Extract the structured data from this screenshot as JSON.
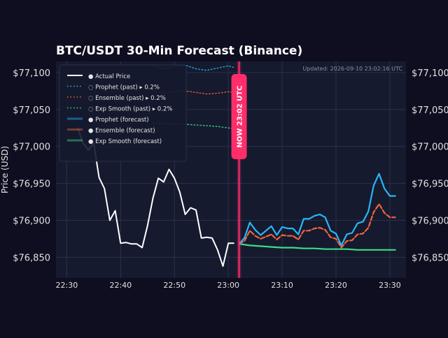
{
  "colors": {
    "page_bg": "#0e0e20",
    "plot_bg": "#151a2e",
    "actual": "#ffffff",
    "prophet": "#29b6f6",
    "ensemble": "#f0643c",
    "exp_smooth": "#3ddc84",
    "now_line": "#ff2d6a",
    "tick_text": "#e0e0e0",
    "updated_text": "#8a8fa3"
  },
  "chart_data": {
    "type": "line",
    "title": "BTC/USDT 30-Min Forecast (Binance)",
    "ylabel": "Price (USD)",
    "xlabel": "",
    "updated": "Updated: 2026-09-10 23:02:16 UTC",
    "now_label": "NOW  23:02 UTC",
    "now_time": "23:02",
    "ylim": [
      76822,
      77115
    ],
    "xlim": [
      "22:28",
      "23:33"
    ],
    "y_ticks": [
      76850,
      76900,
      76950,
      77000,
      77050,
      77100
    ],
    "y_tick_labels": [
      "$76,850",
      "$76,900",
      "$76,950",
      "$77,000",
      "$77,050",
      "$77,100"
    ],
    "x_ticks": [
      "22:30",
      "22:40",
      "22:50",
      "23:00",
      "23:10",
      "23:20",
      "23:30"
    ],
    "grid": true,
    "legend_position": "top-left",
    "legend": [
      {
        "label": "● Actual Price",
        "style": "solid",
        "color_key": "actual"
      },
      {
        "label": "◌ Prophet (past)  ▸ 0.2%",
        "style": "dotted",
        "color_key": "prophet"
      },
      {
        "label": "◌ Ensemble (past)  ▸ 0.2%",
        "style": "dotted",
        "color_key": "ensemble"
      },
      {
        "label": "◌ Exp Smooth (past)  ▸ 0.2%",
        "style": "dotted",
        "color_key": "exp_smooth"
      },
      {
        "label": "● Prophet (forecast)",
        "style": "solid-faded",
        "color_key": "prophet"
      },
      {
        "label": "● Ensemble (forecast)",
        "style": "solid-faded",
        "color_key": "ensemble"
      },
      {
        "label": "● Exp Smooth (forecast)",
        "style": "solid-faded",
        "color_key": "exp_smooth"
      }
    ],
    "series": [
      {
        "name": "Actual Price",
        "color_key": "actual",
        "style": "solid",
        "x": [
          "22:32",
          "22:33",
          "22:34",
          "22:35",
          "22:36",
          "22:37",
          "22:38",
          "22:39",
          "22:40",
          "22:41",
          "22:42",
          "22:43",
          "22:44",
          "22:45",
          "22:46",
          "22:47",
          "22:48",
          "22:49",
          "22:50",
          "22:51",
          "22:52",
          "22:53",
          "22:54",
          "22:55",
          "22:56",
          "22:57",
          "22:58",
          "22:59",
          "23:00",
          "23:01"
        ],
        "y": [
          77025,
          77005,
          76995,
          77005,
          76958,
          76943,
          76900,
          76913,
          76869,
          76870,
          76868,
          76868,
          76863,
          76893,
          76930,
          76957,
          76952,
          76969,
          76957,
          76938,
          76908,
          76917,
          76914,
          76876,
          76877,
          76876,
          76860,
          76838,
          76869,
          76869
        ]
      },
      {
        "name": "Prophet (past)",
        "color_key": "prophet",
        "style": "dotted",
        "x": [
          "22:46",
          "22:48",
          "22:50",
          "22:52",
          "22:54",
          "22:56",
          "22:58",
          "23:00",
          "23:01"
        ],
        "y": [
          77110,
          77105,
          77108,
          77110,
          77105,
          77103,
          77106,
          77109,
          77107
        ]
      },
      {
        "name": "Ensemble (past)",
        "color_key": "ensemble",
        "style": "dotted",
        "x": [
          "22:46",
          "22:48",
          "22:50",
          "22:52",
          "22:54",
          "22:56",
          "22:58",
          "23:00",
          "23:01"
        ],
        "y": [
          77075,
          77072,
          77074,
          77075,
          77073,
          77071,
          77072,
          77074,
          77073
        ]
      },
      {
        "name": "Exp Smooth (past)",
        "color_key": "exp_smooth",
        "style": "dotted",
        "x": [
          "22:46",
          "22:48",
          "22:50",
          "22:52",
          "22:54",
          "22:56",
          "22:58",
          "23:00",
          "23:01"
        ],
        "y": [
          77032,
          77031,
          77030,
          77030,
          77029,
          77028,
          77027,
          77025,
          77024
        ]
      },
      {
        "name": "Prophet (forecast)",
        "color_key": "prophet",
        "style": "solid",
        "x": [
          "23:02",
          "23:03",
          "23:04",
          "23:05",
          "23:06",
          "23:07",
          "23:08",
          "23:09",
          "23:10",
          "23:11",
          "23:12",
          "23:13",
          "23:14",
          "23:15",
          "23:16",
          "23:17",
          "23:18",
          "23:19",
          "23:20",
          "23:21",
          "23:22",
          "23:23",
          "23:24",
          "23:25",
          "23:26",
          "23:27",
          "23:28",
          "23:29",
          "23:30",
          "23:31"
        ],
        "y": [
          76868,
          76876,
          76897,
          76887,
          76880,
          76886,
          76892,
          76880,
          76891,
          76889,
          76889,
          76881,
          76902,
          76902,
          76906,
          76908,
          76904,
          76886,
          76882,
          76866,
          76881,
          76883,
          76896,
          76898,
          76912,
          76947,
          76963,
          76943,
          76933,
          76933
        ]
      },
      {
        "name": "Ensemble (forecast)",
        "color_key": "ensemble",
        "style": "dashed",
        "x": [
          "23:02",
          "23:03",
          "23:04",
          "23:05",
          "23:06",
          "23:07",
          "23:08",
          "23:09",
          "23:10",
          "23:11",
          "23:12",
          "23:13",
          "23:14",
          "23:15",
          "23:16",
          "23:17",
          "23:18",
          "23:19",
          "23:20",
          "23:21",
          "23:22",
          "23:23",
          "23:24",
          "23:25",
          "23:26",
          "23:27",
          "23:28",
          "23:29",
          "23:30",
          "23:31"
        ],
        "y": [
          76868,
          76872,
          76886,
          76879,
          76875,
          76878,
          76881,
          76874,
          76880,
          76879,
          76879,
          76874,
          76886,
          76886,
          76889,
          76890,
          76887,
          76877,
          76875,
          76863,
          76872,
          76873,
          76881,
          76882,
          76890,
          76911,
          76922,
          76910,
          76904,
          76904
        ]
      },
      {
        "name": "Exp Smooth (forecast)",
        "color_key": "exp_smooth",
        "style": "solid",
        "x": [
          "23:02",
          "23:04",
          "23:06",
          "23:08",
          "23:10",
          "23:12",
          "23:14",
          "23:16",
          "23:18",
          "23:20",
          "23:22",
          "23:24",
          "23:26",
          "23:28",
          "23:30",
          "23:31"
        ],
        "y": [
          76868,
          76866,
          76865,
          76864,
          76863,
          76863,
          76862,
          76862,
          76861,
          76861,
          76861,
          76860,
          76860,
          76860,
          76860,
          76860
        ]
      }
    ]
  }
}
